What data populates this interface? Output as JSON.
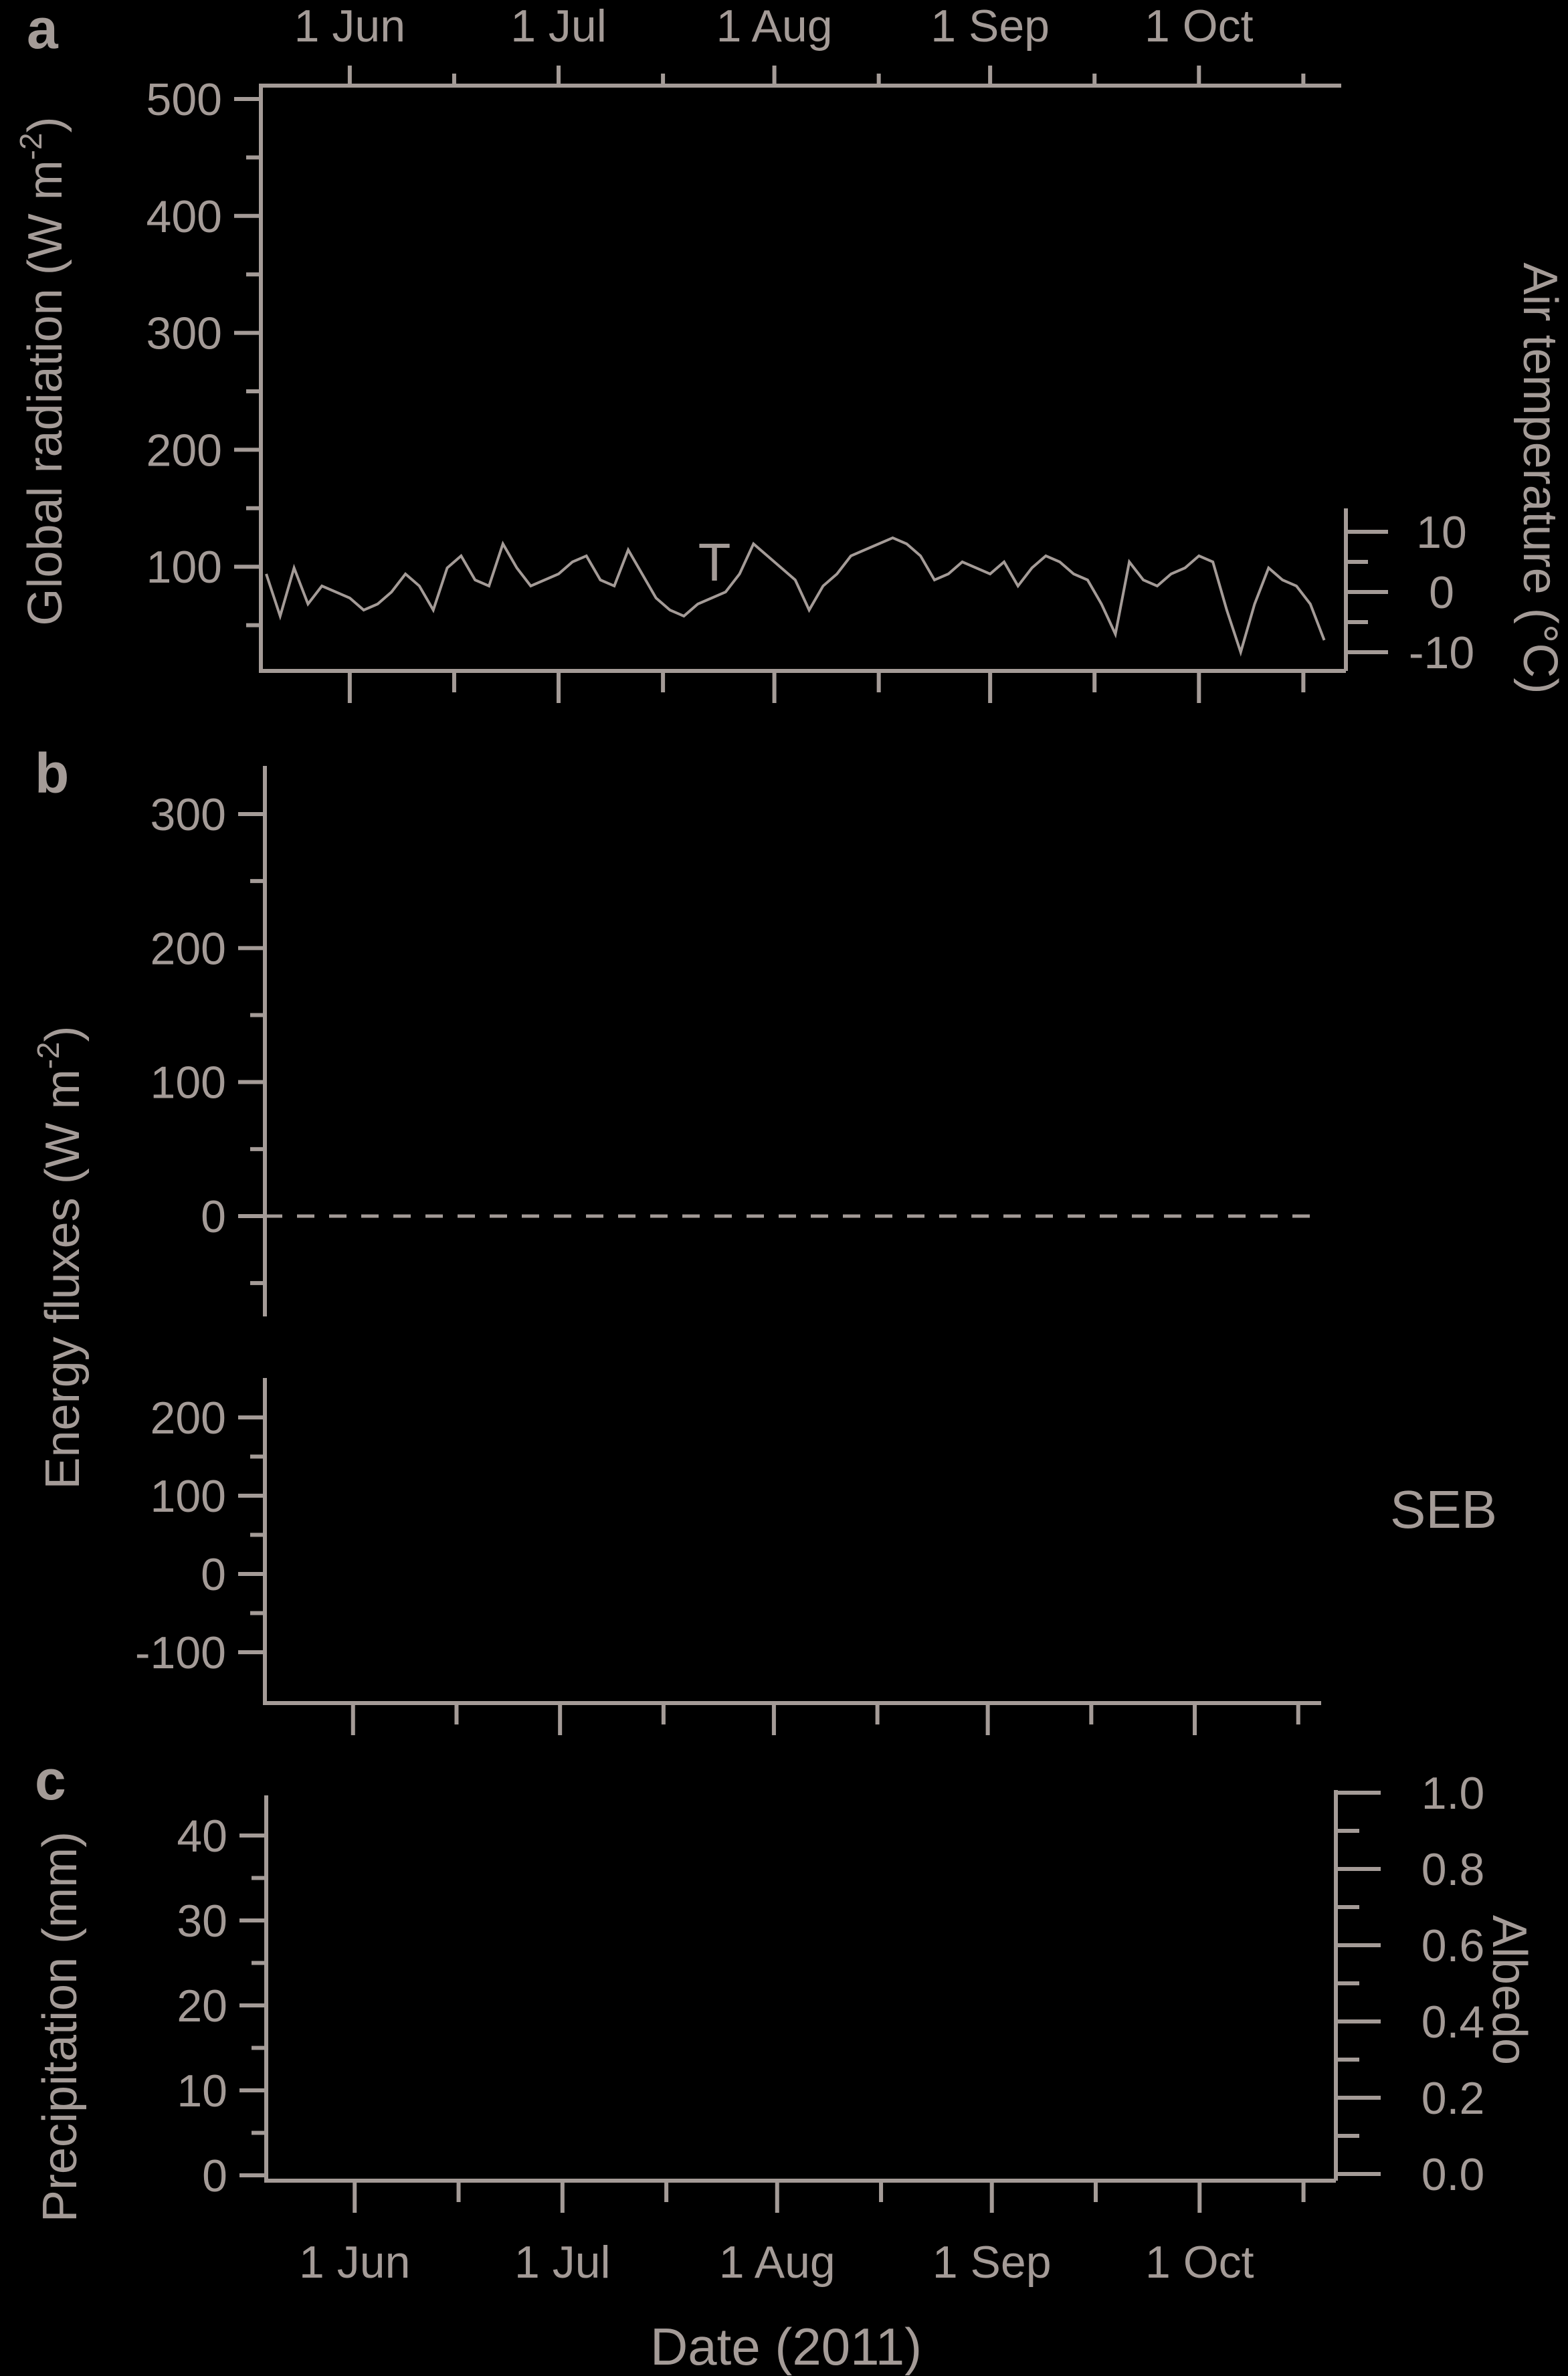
{
  "colors": {
    "background": "#000000",
    "foreground": "#a49b97"
  },
  "x_axis": {
    "ticks": [
      "1 Jun",
      "1 Jul",
      "1 Aug",
      "1 Sep",
      "1 Oct"
    ],
    "label": "Date (2011)"
  },
  "panels": {
    "a": {
      "letter": "a",
      "ylabel": "Global radiation (W m",
      "ylabel_sup": "-2",
      "ylabel_end": ")",
      "y2label": "Air temperature (°C)",
      "temp_label": "T"
    },
    "b": {
      "letter": "b",
      "ylabel": "Energy fluxes (W m",
      "ylabel_sup": "-2",
      "ylabel_end": ")",
      "seb_label": "SEB"
    },
    "c": {
      "letter": "c",
      "ylabel": "Precipitation (mm)",
      "y2label": "Albedo"
    }
  },
  "chart_data": [
    {
      "type": "line",
      "panel": "a",
      "xlabel": "",
      "ylabel": "Global radiation (W m-2)",
      "ylim": [
        0,
        520
      ],
      "y_ticks": [
        "500",
        "400",
        "300",
        "200",
        "100"
      ],
      "y_tick_values": [
        500,
        400,
        300,
        200,
        100
      ],
      "y2label": "Air temperature (°C)",
      "y2lim": [
        -10,
        10
      ],
      "y2_ticks": [
        "10",
        "0",
        "-10"
      ],
      "y2_tick_values": [
        10,
        0,
        -10
      ],
      "x_range": [
        "2011-05-20",
        "2011-10-20"
      ],
      "series": [
        {
          "name": "T",
          "axis": "right",
          "x": [
            "2011-05-20",
            "2011-05-22",
            "2011-05-24",
            "2011-05-26",
            "2011-05-28",
            "2011-05-30",
            "2011-06-01",
            "2011-06-03",
            "2011-06-05",
            "2011-06-07",
            "2011-06-09",
            "2011-06-11",
            "2011-06-13",
            "2011-06-15",
            "2011-06-17",
            "2011-06-19",
            "2011-06-21",
            "2011-06-23",
            "2011-06-25",
            "2011-06-27",
            "2011-06-29",
            "2011-07-01",
            "2011-07-03",
            "2011-07-05",
            "2011-07-07",
            "2011-07-09",
            "2011-07-11",
            "2011-07-13",
            "2011-07-15",
            "2011-07-17",
            "2011-07-19",
            "2011-07-21",
            "2011-07-23",
            "2011-07-25",
            "2011-07-27",
            "2011-07-29",
            "2011-07-31",
            "2011-08-02",
            "2011-08-04",
            "2011-08-06",
            "2011-08-08",
            "2011-08-10",
            "2011-08-12",
            "2011-08-14",
            "2011-08-16",
            "2011-08-18",
            "2011-08-20",
            "2011-08-22",
            "2011-08-24",
            "2011-08-26",
            "2011-08-28",
            "2011-08-30",
            "2011-09-01",
            "2011-09-03",
            "2011-09-05",
            "2011-09-07",
            "2011-09-09",
            "2011-09-11",
            "2011-09-13",
            "2011-09-15",
            "2011-09-17",
            "2011-09-19",
            "2011-09-21",
            "2011-09-23",
            "2011-09-25",
            "2011-09-27",
            "2011-09-29",
            "2011-10-01",
            "2011-10-03",
            "2011-10-05",
            "2011-10-07",
            "2011-10-09",
            "2011-10-11",
            "2011-10-13",
            "2011-10-15",
            "2011-10-17",
            "2011-10-19"
          ],
          "values": [
            3,
            -4,
            4,
            -2,
            1,
            0,
            -1,
            -3,
            -2,
            0,
            3,
            1,
            -3,
            4,
            6,
            2,
            1,
            8,
            4,
            1,
            2,
            3,
            5,
            6,
            2,
            1,
            7,
            3,
            -1,
            -3,
            -4,
            -2,
            -1,
            0,
            3,
            8,
            6,
            4,
            2,
            -3,
            1,
            3,
            6,
            7,
            8,
            9,
            8,
            6,
            2,
            3,
            5,
            4,
            3,
            5,
            1,
            4,
            6,
            5,
            3,
            2,
            -2,
            -7,
            5,
            2,
            1,
            3,
            4,
            6,
            5,
            -3,
            -10,
            -2,
            4,
            2,
            1,
            -2,
            -8
          ],
          "values_note": ""
        }
      ]
    },
    {
      "type": "line",
      "panel": "b-upper",
      "ylabel": "Energy fluxes (W m-2)",
      "ylim": [
        -75,
        335
      ],
      "y_ticks": [
        "300",
        "200",
        "100",
        "0"
      ],
      "y_tick_values": [
        300,
        200,
        100,
        0
      ],
      "x_range": [
        "2011-05-20",
        "2011-10-20"
      ],
      "series": [
        {
          "name": "",
          "style": "dashed",
          "x": [
            "2011-05-20",
            "2011-10-20"
          ],
          "values": [
            0,
            0
          ]
        }
      ]
    },
    {
      "type": "line",
      "panel": "b-lower",
      "ylim": [
        -165,
        250
      ],
      "y_ticks": [
        "200",
        "100",
        "0",
        "-100"
      ],
      "y_tick_values": [
        200,
        100,
        0,
        -100
      ],
      "series": []
    },
    {
      "type": "line",
      "panel": "c",
      "ylabel": "Precipitation (mm)",
      "ylim": [
        0,
        45
      ],
      "y_ticks": [
        "40",
        "30",
        "20",
        "10",
        "0"
      ],
      "y_tick_values": [
        40,
        30,
        20,
        10,
        0
      ],
      "y2label": "Albedo",
      "y2lim": [
        0,
        1
      ],
      "y2_ticks": [
        "1.0",
        "0.8",
        "0.6",
        "0.4",
        "0.2",
        "0.0"
      ],
      "y2_tick_values": [
        1.0,
        0.8,
        0.6,
        0.4,
        0.2,
        0.0
      ],
      "series": []
    }
  ]
}
